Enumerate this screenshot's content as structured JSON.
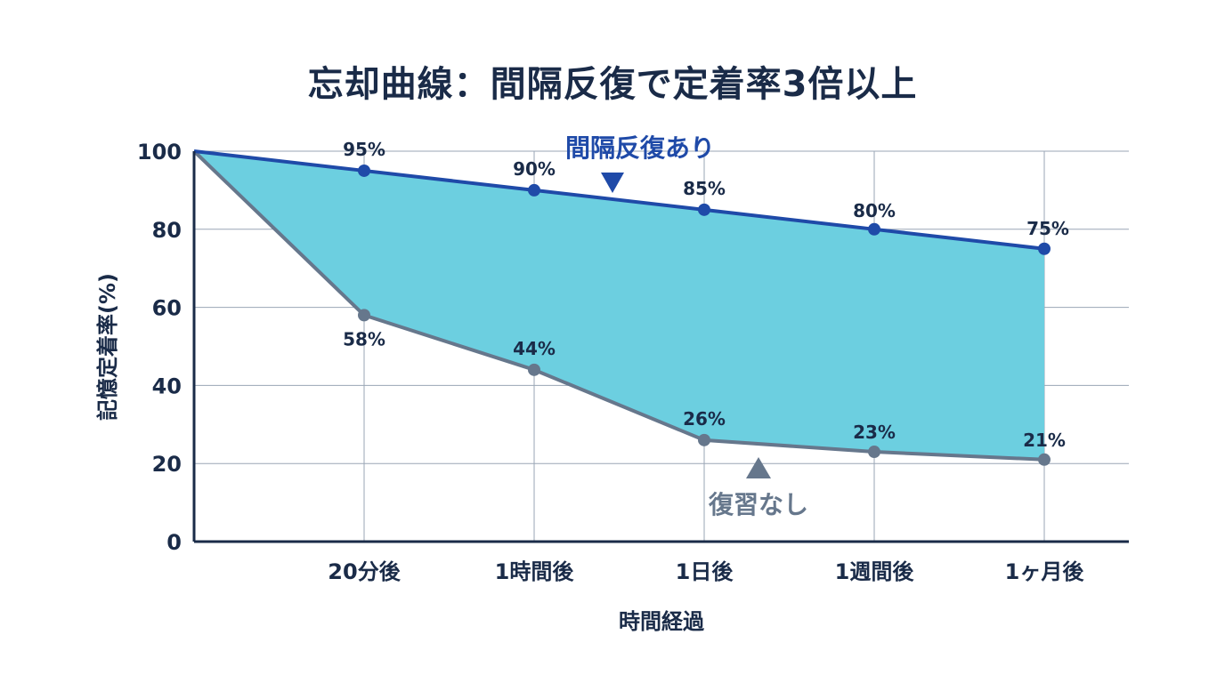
{
  "title": "忘却曲線：間隔反復で定着率3倍以上",
  "chart_data": {
    "type": "area",
    "title": "忘却曲線：間隔反復で定着率3倍以上",
    "xlabel": "時間経過",
    "ylabel": "記憶定着率(%)",
    "ylim": [
      0,
      100
    ],
    "yticks": [
      "0",
      "20",
      "40",
      "60",
      "80",
      "100"
    ],
    "categories": [
      "",
      "20分後",
      "1時間後",
      "1日後",
      "1週間後",
      "1ヶ月後"
    ],
    "grid": true,
    "series": [
      {
        "name": "間隔反復あり",
        "values": [
          100,
          95,
          90,
          85,
          80,
          75
        ],
        "labels": [
          "",
          "95%",
          "90%",
          "85%",
          "80%",
          "75%"
        ],
        "color": "#1f4aa8"
      },
      {
        "name": "復習なし",
        "values": [
          100,
          58,
          44,
          26,
          23,
          21
        ],
        "labels": [
          "",
          "58%",
          "44%",
          "26%",
          "23%",
          "21%"
        ],
        "color": "#66778c"
      }
    ],
    "fill_between_color": "#6ccfe0"
  }
}
